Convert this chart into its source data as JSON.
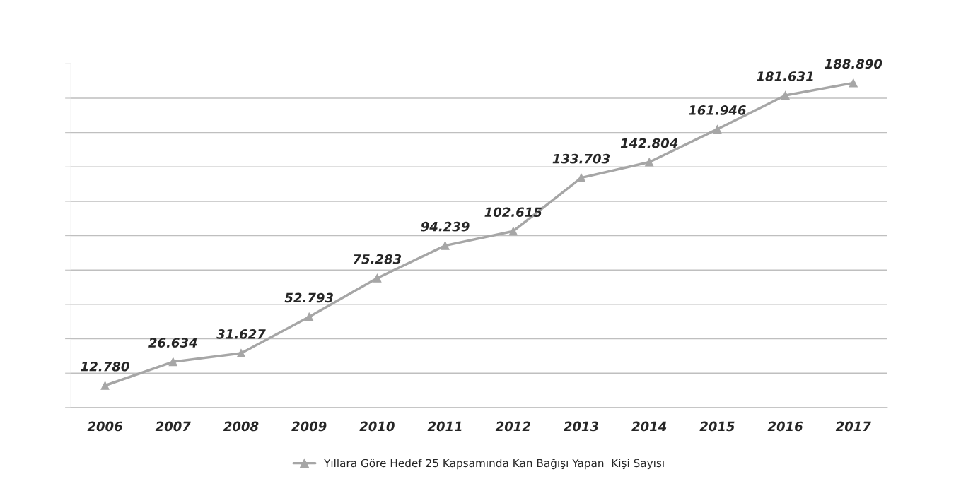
{
  "chart_data": {
    "type": "line",
    "categories": [
      "2006",
      "2007",
      "2008",
      "2009",
      "2010",
      "2011",
      "2012",
      "2013",
      "2014",
      "2015",
      "2016",
      "2017"
    ],
    "series": [
      {
        "name": "Yıllara Göre Hedef 25 Kapsamında Kan Bağışı Yapan  Kişi Sayısı",
        "color": "#a6a6a6",
        "values": [
          12780,
          26634,
          31627,
          52793,
          75283,
          94239,
          102615,
          133703,
          142804,
          161946,
          181631,
          188890
        ],
        "value_labels": [
          "12.780",
          "26.634",
          "31.627",
          "52.793",
          "75.283",
          "94.239",
          "102.615",
          "133.703",
          "142.804",
          "161.946",
          "181.631",
          "188.890"
        ]
      }
    ],
    "ylim": [
      0,
      200000
    ],
    "yticks": [
      {
        "value": 0,
        "label": null
      },
      {
        "value": 20000,
        "label": null
      },
      {
        "value": 40000,
        "label": null
      },
      {
        "value": 60000,
        "label": null
      },
      {
        "value": 80000,
        "label": null
      },
      {
        "value": 100000,
        "label": null
      },
      {
        "value": 120000,
        "label": null
      },
      {
        "value": 140000,
        "label": null
      },
      {
        "value": 160000,
        "label": null
      },
      {
        "value": 180000,
        "label": null
      },
      {
        "value": 200000,
        "label": null
      }
    ],
    "grid": "y",
    "legend": "bottom",
    "marker": "triangle",
    "line_style": "solid"
  }
}
